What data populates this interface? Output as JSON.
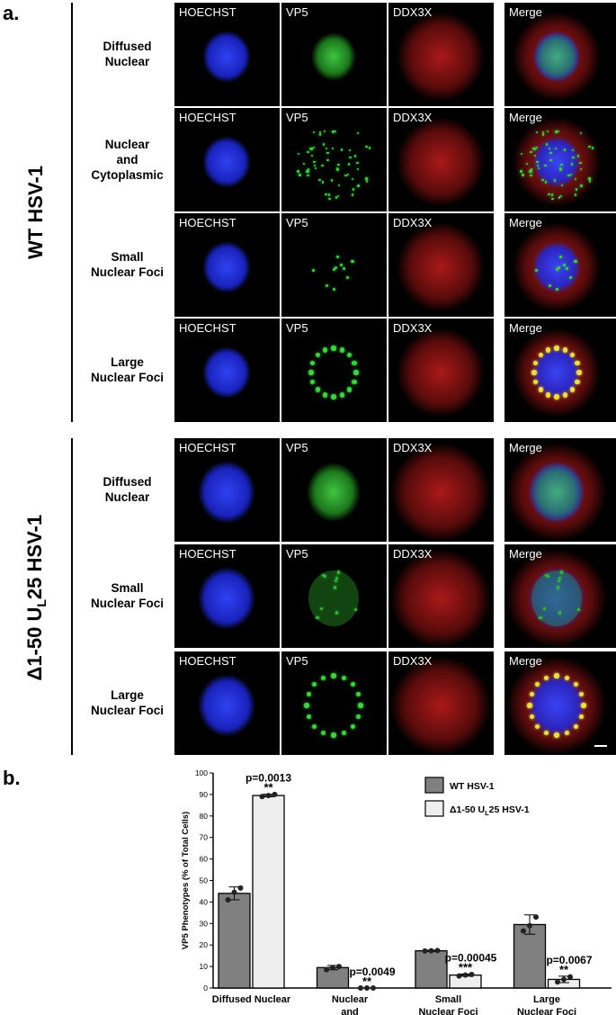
{
  "panel_a": {
    "letter": "a.",
    "channels": [
      "HOECHST",
      "VP5",
      "DDX3X",
      "Merge"
    ],
    "groups": [
      {
        "label": "WT HSV-1",
        "rows": [
          {
            "label": "Diffused\nNuclear",
            "phenotype": "diffused"
          },
          {
            "label": "Nuclear\nand\nCytoplasmic",
            "phenotype": "nuccyto"
          },
          {
            "label": "Small\nNuclear Foci",
            "phenotype": "small"
          },
          {
            "label": "Large\nNuclear Foci",
            "phenotype": "large"
          }
        ]
      },
      {
        "label_prefix": "Δ1-50 U",
        "label_sub": "L",
        "label_suffix": "25  HSV-1",
        "rows": [
          {
            "label": "Diffused\nNuclear",
            "phenotype": "diffused"
          },
          {
            "label": "Small\nNuclear Foci",
            "phenotype": "small"
          },
          {
            "label": "Large\nNuclear Foci",
            "phenotype": "large"
          }
        ]
      }
    ],
    "colors": {
      "hoechst": "#2a3cff",
      "vp5": "#39d43a",
      "ddx3x": "#d8241f"
    }
  },
  "panel_b": {
    "letter": "b.",
    "chart_data": {
      "type": "bar",
      "ylabel": "VP5 Phenotypes (% of Total Cells)",
      "xlabel": "",
      "ylim": [
        0,
        100
      ],
      "yticks": [
        0,
        10,
        20,
        30,
        40,
        50,
        60,
        70,
        80,
        90,
        100
      ],
      "categories": [
        "Diffused Nuclear",
        "Nuclear\nand\nCytoplasmic",
        "Small\nNuclear Foci",
        "Large\nNuclear Foci"
      ],
      "legend_position": "top-right",
      "series": [
        {
          "legend_prefix": "WT HSV-1",
          "legend_sub": "",
          "legend_suffix": "",
          "color": "#808080",
          "values": [
            44,
            9.5,
            17.3,
            29.5
          ],
          "errors": [
            3,
            1,
            0.3,
            4.5
          ],
          "points": [
            [
              41,
              44.5,
              46.5
            ],
            [
              8.5,
              9.5,
              10
            ],
            [
              17.2,
              17.3,
              17.4
            ],
            [
              26.5,
              29,
              33
            ]
          ]
        },
        {
          "legend_prefix": "Δ1-50 U",
          "legend_sub": "L",
          "legend_suffix": "25  HSV-1",
          "color": "#eeeeee",
          "values": [
            89.5,
            0,
            6,
            4
          ],
          "errors": [
            0.6,
            0,
            0.5,
            1.5
          ],
          "points": [
            [
              89,
              89.5,
              90
            ],
            [
              0,
              0,
              0
            ],
            [
              5.6,
              6,
              6.3
            ],
            [
              2.8,
              4,
              5.2
            ]
          ]
        }
      ],
      "annotations": [
        {
          "category": 0,
          "p": "p=0.0013",
          "stars": "**"
        },
        {
          "category": 1,
          "p": "p=0.0049",
          "stars": "**"
        },
        {
          "category": 2,
          "p": "p=0.00045",
          "stars": "***"
        },
        {
          "category": 3,
          "p": "p=0.0067",
          "stars": "**"
        }
      ]
    }
  }
}
